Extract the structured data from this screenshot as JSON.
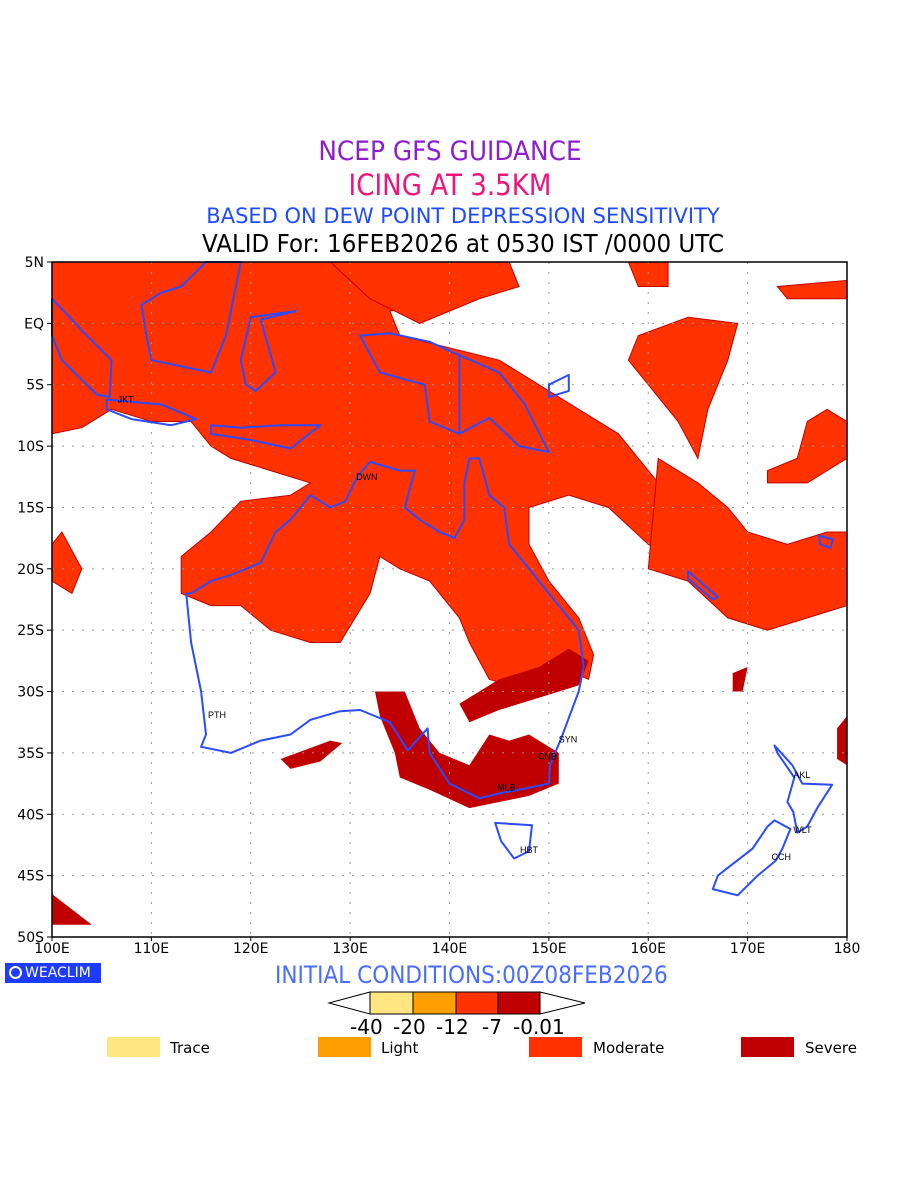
{
  "header": {
    "title_line1": "NCEP GFS GUIDANCE",
    "title_line2": "ICING AT 3.5KM",
    "title_line3": "BASED ON DEW POINT DEPRESSION SENSITIVITY",
    "title_line4": "VALID For: 16FEB2026 at 0530 IST /0000 UTC"
  },
  "map": {
    "lon_range": [
      100,
      180
    ],
    "lat_range": [
      -50,
      5
    ],
    "y_ticks": [
      "5N",
      "EQ",
      "5S",
      "10S",
      "15S",
      "20S",
      "25S",
      "30S",
      "35S",
      "40S",
      "45S",
      "50S"
    ],
    "x_ticks": [
      "100E",
      "110E",
      "120E",
      "130E",
      "140E",
      "150E",
      "160E",
      "170E",
      "180"
    ],
    "cities": [
      {
        "name": "JKT",
        "lon": 106.8,
        "lat": -6.2
      },
      {
        "name": "DWN",
        "lon": 130.8,
        "lat": -12.5
      },
      {
        "name": "PTH",
        "lon": 115.9,
        "lat": -31.9
      },
      {
        "name": "SYN",
        "lon": 151.2,
        "lat": -33.9
      },
      {
        "name": "CNB",
        "lon": 149.1,
        "lat": -35.3
      },
      {
        "name": "MLB",
        "lon": 145.0,
        "lat": -37.8
      },
      {
        "name": "HBT",
        "lon": 147.3,
        "lat": -42.9
      },
      {
        "name": "AKL",
        "lon": 174.8,
        "lat": -36.8
      },
      {
        "name": "WLT",
        "lon": 174.8,
        "lat": -41.3
      },
      {
        "name": "CCH",
        "lon": 172.6,
        "lat": -43.5
      }
    ],
    "coast_color": "#2a4bff"
  },
  "footer": {
    "watermark": "WEACLIM",
    "initial_conditions": "INITIAL CONDITIONS:00Z08FEB2026"
  },
  "colorbar": {
    "labels": [
      "-40",
      "-20",
      "-12",
      "-7",
      "-0.01"
    ],
    "colors": [
      "#ffe680",
      "#ff9e00",
      "#ff3200",
      "#c00000"
    ]
  },
  "legend": [
    {
      "label": "Trace",
      "color": "#ffe680"
    },
    {
      "label": "Light",
      "color": "#ff9e00"
    },
    {
      "label": "Moderate",
      "color": "#ff3200"
    },
    {
      "label": "Severe",
      "color": "#c00000"
    }
  ]
}
